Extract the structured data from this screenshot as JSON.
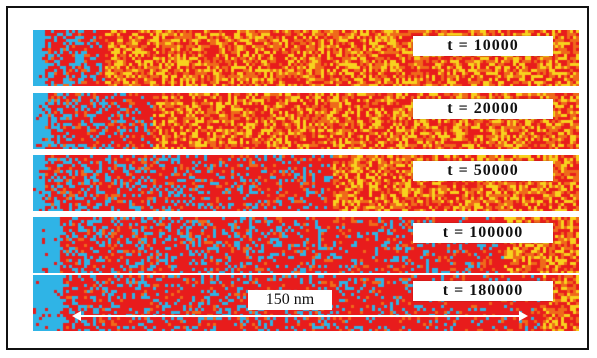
{
  "colors": {
    "background": "#2fb4e6",
    "phase_red": "#e81c1c",
    "phase_orange": "#ef6a1a",
    "phase_yellow": "#f7d21e",
    "frame": "#111111",
    "label_bg": "#ffffff"
  },
  "snapshots": [
    {
      "time_label": "t = 10000"
    },
    {
      "time_label": "t = 20000"
    },
    {
      "time_label": "t = 50000"
    },
    {
      "time_label": "t = 100000"
    },
    {
      "time_label": "t = 180000"
    }
  ],
  "scale_bar": {
    "label": "150 nm"
  }
}
